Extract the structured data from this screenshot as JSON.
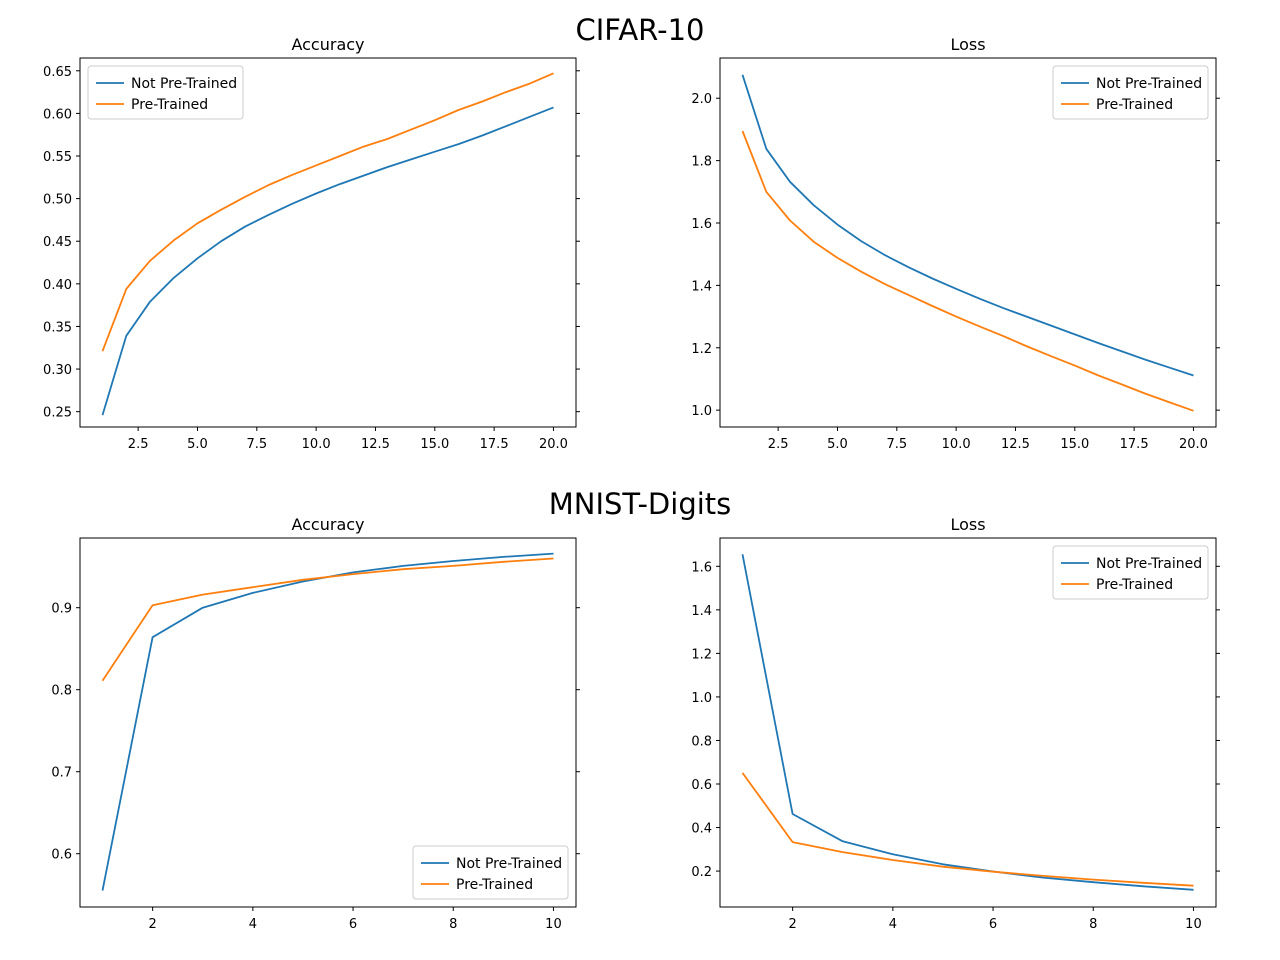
{
  "figure": {
    "row_titles": [
      "CIFAR-10",
      "MNIST-Digits"
    ]
  },
  "colors": {
    "series1": "#1f77b4",
    "series2": "#ff7f0e",
    "axis": "#000000"
  },
  "chart_data": [
    {
      "type": "line",
      "group": "CIFAR-10",
      "title": "Accuracy",
      "xlabel": "",
      "ylabel": "",
      "xlim": [
        0.05,
        20.95
      ],
      "ylim": [
        0.232,
        0.665
      ],
      "xticks": [
        2.5,
        5.0,
        7.5,
        10.0,
        12.5,
        15.0,
        17.5,
        20.0
      ],
      "xtick_labels": [
        "2.5",
        "5.0",
        "7.5",
        "10.0",
        "12.5",
        "15.0",
        "17.5",
        "20.0"
      ],
      "yticks": [
        0.25,
        0.3,
        0.35,
        0.4,
        0.45,
        0.5,
        0.55,
        0.6,
        0.65
      ],
      "ytick_labels": [
        "0.25",
        "0.30",
        "0.35",
        "0.40",
        "0.45",
        "0.50",
        "0.55",
        "0.60",
        "0.65"
      ],
      "legend_loc": "upper left",
      "grid": false,
      "x": [
        1,
        2,
        3,
        4,
        5,
        6,
        7,
        8,
        9,
        10,
        11,
        12,
        13,
        14,
        15,
        16,
        17,
        18,
        19,
        20
      ],
      "series": [
        {
          "name": "Not Pre-Trained",
          "color": "#1f77b4",
          "values": [
            0.246,
            0.339,
            0.379,
            0.407,
            0.43,
            0.45,
            0.467,
            0.481,
            0.494,
            0.506,
            0.517,
            0.527,
            0.537,
            0.546,
            0.555,
            0.564,
            0.574,
            0.585,
            0.596,
            0.607
          ]
        },
        {
          "name": "Pre-Trained",
          "color": "#ff7f0e",
          "values": [
            0.321,
            0.394,
            0.427,
            0.451,
            0.471,
            0.487,
            0.502,
            0.516,
            0.528,
            0.539,
            0.55,
            0.561,
            0.57,
            0.581,
            0.592,
            0.604,
            0.614,
            0.625,
            0.635,
            0.647
          ]
        }
      ]
    },
    {
      "type": "line",
      "group": "CIFAR-10",
      "title": "Loss",
      "xlabel": "",
      "ylabel": "",
      "xlim": [
        0.05,
        20.95
      ],
      "ylim": [
        0.946,
        2.129
      ],
      "xticks": [
        2.5,
        5.0,
        7.5,
        10.0,
        12.5,
        15.0,
        17.5,
        20.0
      ],
      "xtick_labels": [
        "2.5",
        "5.0",
        "7.5",
        "10.0",
        "12.5",
        "15.0",
        "17.5",
        "20.0"
      ],
      "yticks": [
        1.0,
        1.2,
        1.4,
        1.6,
        1.8,
        2.0
      ],
      "ytick_labels": [
        "1.0",
        "1.2",
        "1.4",
        "1.6",
        "1.8",
        "2.0"
      ],
      "legend_loc": "upper right",
      "grid": false,
      "x": [
        1,
        2,
        3,
        4,
        5,
        6,
        7,
        8,
        9,
        10,
        11,
        12,
        13,
        14,
        15,
        16,
        17,
        18,
        19,
        20
      ],
      "series": [
        {
          "name": "Not Pre-Trained",
          "color": "#1f77b4",
          "values": [
            2.075,
            1.838,
            1.732,
            1.657,
            1.595,
            1.542,
            1.497,
            1.458,
            1.422,
            1.389,
            1.357,
            1.327,
            1.299,
            1.271,
            1.243,
            1.215,
            1.188,
            1.161,
            1.136,
            1.111
          ]
        },
        {
          "name": "Pre-Trained",
          "color": "#ff7f0e",
          "values": [
            1.895,
            1.7,
            1.608,
            1.54,
            1.488,
            1.444,
            1.404,
            1.369,
            1.334,
            1.3,
            1.268,
            1.237,
            1.204,
            1.173,
            1.143,
            1.111,
            1.082,
            1.052,
            1.025,
            0.998
          ]
        }
      ]
    },
    {
      "type": "line",
      "group": "MNIST-Digits",
      "title": "Accuracy",
      "xlabel": "",
      "ylabel": "",
      "xlim": [
        0.55,
        10.45
      ],
      "ylim": [
        0.535,
        0.985
      ],
      "xticks": [
        2,
        4,
        6,
        8,
        10
      ],
      "xtick_labels": [
        "2",
        "4",
        "6",
        "8",
        "10"
      ],
      "yticks": [
        0.6,
        0.7,
        0.8,
        0.9
      ],
      "ytick_labels": [
        "0.6",
        "0.7",
        "0.8",
        "0.9"
      ],
      "legend_loc": "lower right",
      "grid": false,
      "x": [
        1,
        2,
        3,
        4,
        5,
        6,
        7,
        8,
        9,
        10
      ],
      "series": [
        {
          "name": "Not Pre-Trained",
          "color": "#1f77b4",
          "values": [
            0.555,
            0.864,
            0.9,
            0.918,
            0.932,
            0.943,
            0.951,
            0.957,
            0.962,
            0.966
          ]
        },
        {
          "name": "Pre-Trained",
          "color": "#ff7f0e",
          "values": [
            0.811,
            0.903,
            0.916,
            0.925,
            0.934,
            0.941,
            0.947,
            0.951,
            0.956,
            0.96
          ]
        }
      ]
    },
    {
      "type": "line",
      "group": "MNIST-Digits",
      "title": "Loss",
      "xlabel": "",
      "ylabel": "",
      "xlim": [
        0.55,
        10.45
      ],
      "ylim": [
        0.035,
        1.73
      ],
      "xticks": [
        2,
        4,
        6,
        8,
        10
      ],
      "xtick_labels": [
        "2",
        "4",
        "6",
        "8",
        "10"
      ],
      "yticks": [
        0.2,
        0.4,
        0.6,
        0.8,
        1.0,
        1.2,
        1.4,
        1.6
      ],
      "ytick_labels": [
        "0.2",
        "0.4",
        "0.6",
        "0.8",
        "1.0",
        "1.2",
        "1.4",
        "1.6"
      ],
      "legend_loc": "upper right",
      "grid": false,
      "x": [
        1,
        2,
        3,
        4,
        5,
        6,
        7,
        8,
        9,
        10
      ],
      "series": [
        {
          "name": "Not Pre-Trained",
          "color": "#1f77b4",
          "values": [
            1.655,
            0.462,
            0.337,
            0.277,
            0.231,
            0.198,
            0.17,
            0.149,
            0.13,
            0.114
          ]
        },
        {
          "name": "Pre-Trained",
          "color": "#ff7f0e",
          "values": [
            0.651,
            0.333,
            0.287,
            0.251,
            0.22,
            0.197,
            0.178,
            0.161,
            0.146,
            0.133
          ]
        }
      ]
    }
  ]
}
